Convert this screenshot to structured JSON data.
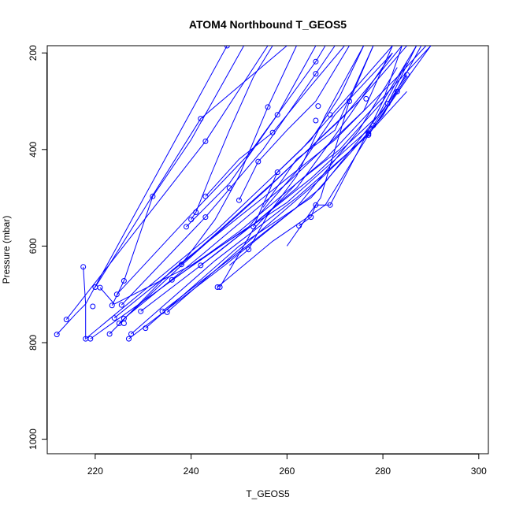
{
  "chart_data": {
    "type": "line",
    "title": "ATOM4 Northbound T_GEOS5",
    "xlabel": "T_GEOS5",
    "ylabel": "Pressure (mbar)",
    "xlim": [
      210,
      302
    ],
    "ylim": [
      1030,
      185
    ],
    "y_reversed": true,
    "x_ticks": [
      220,
      240,
      260,
      280,
      300
    ],
    "y_ticks": [
      200,
      400,
      600,
      800,
      1000
    ],
    "grid": false,
    "line_color": "#0000FF",
    "series": [
      {
        "points": [
          [
            212,
            783
          ],
          [
            216,
            740
          ],
          [
            218,
            720
          ],
          [
            247.5,
            185
          ]
        ]
      },
      {
        "points": [
          [
            214,
            752
          ],
          [
            243,
            383
          ],
          [
            256,
            185
          ]
        ]
      },
      {
        "points": [
          [
            217.5,
            643
          ],
          [
            218,
            720
          ],
          [
            218,
            792
          ],
          [
            245,
            570
          ],
          [
            263,
            400
          ],
          [
            282,
            185
          ]
        ]
      },
      {
        "points": [
          [
            219,
            792
          ],
          [
            232,
            700
          ],
          [
            250,
            570
          ],
          [
            268,
            420
          ],
          [
            284,
            250
          ],
          [
            290,
            185
          ]
        ]
      },
      {
        "points": [
          [
            220,
            685
          ],
          [
            242,
            336
          ],
          [
            260,
            185
          ]
        ]
      },
      {
        "points": [
          [
            221,
            686
          ],
          [
            224,
            720
          ],
          [
            240,
            640
          ],
          [
            260,
            510
          ],
          [
            278,
            350
          ],
          [
            285,
            245
          ]
        ]
      },
      {
        "points": [
          [
            223,
            782
          ],
          [
            236,
            650
          ],
          [
            255,
            500
          ],
          [
            270,
            380
          ],
          [
            283,
            250
          ],
          [
            289,
            185
          ]
        ]
      },
      {
        "points": [
          [
            223.5,
            723
          ],
          [
            226,
            672
          ],
          [
            232,
            497
          ],
          [
            240,
            380
          ],
          [
            251,
            185
          ]
        ]
      },
      {
        "points": [
          [
            224,
            749
          ],
          [
            240,
            620
          ],
          [
            258,
            460
          ],
          [
            272,
            330
          ],
          [
            284,
            185
          ]
        ]
      },
      {
        "points": [
          [
            224.5,
            700
          ],
          [
            239,
            545
          ],
          [
            252,
            410
          ],
          [
            266,
            218
          ],
          [
            268,
            185
          ]
        ]
      },
      {
        "points": [
          [
            225,
            760
          ],
          [
            238,
            640
          ],
          [
            256,
            480
          ],
          [
            275,
            300
          ],
          [
            285,
            185
          ]
        ]
      },
      {
        "points": [
          [
            225.5,
            722
          ],
          [
            243,
            540
          ],
          [
            255,
            400
          ],
          [
            266,
            243
          ],
          [
            270,
            185
          ]
        ]
      },
      {
        "points": [
          [
            226,
            750
          ],
          [
            242,
            620
          ],
          [
            260,
            470
          ],
          [
            276,
            320
          ],
          [
            282,
            185
          ]
        ]
      },
      {
        "points": [
          [
            227,
            792
          ],
          [
            247,
            640
          ],
          [
            267,
            480
          ],
          [
            281,
            305
          ],
          [
            287,
            185
          ]
        ]
      },
      {
        "points": [
          [
            227.5,
            782
          ],
          [
            245,
            630
          ],
          [
            262,
            500
          ],
          [
            277,
            370
          ],
          [
            286,
            240
          ],
          [
            290,
            185
          ]
        ]
      },
      {
        "points": [
          [
            229.5,
            735
          ],
          [
            246,
            610
          ],
          [
            265,
            460
          ],
          [
            279,
            330
          ],
          [
            285,
            220
          ]
        ]
      },
      {
        "points": [
          [
            230.5,
            770
          ],
          [
            250,
            600
          ],
          [
            265,
            500
          ],
          [
            280,
            330
          ],
          [
            288,
            185
          ]
        ]
      },
      {
        "points": [
          [
            234,
            735
          ],
          [
            249,
            620
          ],
          [
            262,
            520
          ],
          [
            275,
            360
          ],
          [
            283,
            230
          ]
        ]
      },
      {
        "points": [
          [
            235,
            737
          ],
          [
            252,
            590
          ],
          [
            266,
            470
          ],
          [
            277,
            367
          ],
          [
            285,
            280
          ]
        ]
      },
      {
        "points": [
          [
            236,
            670
          ],
          [
            252,
            560
          ],
          [
            262,
            445
          ],
          [
            270,
            328
          ],
          [
            282,
            200
          ]
        ]
      },
      {
        "points": [
          [
            238,
            638
          ],
          [
            245,
            545
          ],
          [
            250,
            455
          ],
          [
            256,
            312
          ],
          [
            262,
            185
          ]
        ]
      },
      {
        "points": [
          [
            239,
            560
          ],
          [
            248,
            470
          ],
          [
            258,
            328
          ],
          [
            266,
            185
          ]
        ]
      },
      {
        "points": [
          [
            240,
            545
          ],
          [
            241,
            530
          ],
          [
            244,
            455
          ],
          [
            248,
            360
          ],
          [
            253,
            250
          ],
          [
            257,
            185
          ]
        ]
      },
      {
        "points": [
          [
            242,
            640
          ],
          [
            253,
            555
          ],
          [
            262,
            480
          ],
          [
            273,
            330
          ],
          [
            282,
            200
          ]
        ]
      },
      {
        "points": [
          [
            243,
            497
          ],
          [
            250,
            420
          ],
          [
            257,
            365
          ],
          [
            264,
            280
          ],
          [
            272,
            185
          ]
        ]
      },
      {
        "points": [
          [
            245.5,
            685
          ],
          [
            257,
            590
          ],
          [
            268,
            515
          ],
          [
            277,
            370
          ],
          [
            285,
            250
          ]
        ]
      },
      {
        "points": [
          [
            246,
            685
          ],
          [
            253,
            565
          ],
          [
            262,
            470
          ],
          [
            271,
            400
          ],
          [
            280,
            300
          ],
          [
            287,
            185
          ]
        ]
      },
      {
        "points": [
          [
            248,
            640
          ],
          [
            252,
            607
          ],
          [
            256,
            535
          ],
          [
            262,
            455
          ],
          [
            268,
            330
          ],
          [
            276,
            185
          ]
        ]
      },
      {
        "points": [
          [
            250,
            505
          ],
          [
            254,
            425
          ],
          [
            260,
            360
          ],
          [
            266,
            300
          ],
          [
            273,
            185
          ]
        ]
      },
      {
        "points": [
          [
            253,
            560
          ],
          [
            258,
            447
          ],
          [
            265,
            380
          ],
          [
            271,
            290
          ],
          [
            276,
            185
          ]
        ]
      },
      {
        "points": [
          [
            255,
            520
          ],
          [
            262,
            420
          ],
          [
            270,
            360
          ],
          [
            278,
            185
          ]
        ]
      },
      {
        "points": [
          [
            262.5,
            558
          ],
          [
            265,
            540
          ],
          [
            266,
            515
          ],
          [
            269,
            515
          ],
          [
            275,
            400
          ],
          [
            280,
            300
          ],
          [
            284,
            185
          ]
        ]
      },
      {
        "points": [
          [
            260,
            600
          ],
          [
            267,
            500
          ],
          [
            273,
            300
          ],
          [
            278,
            185
          ]
        ]
      }
    ],
    "markers": [
      [
        212,
        783
      ],
      [
        214,
        752
      ],
      [
        217.5,
        643
      ],
      [
        218,
        792
      ],
      [
        219,
        792
      ],
      [
        219.5,
        725
      ],
      [
        220,
        685
      ],
      [
        221,
        686
      ],
      [
        223,
        782
      ],
      [
        223.5,
        723
      ],
      [
        224,
        749
      ],
      [
        224.5,
        700
      ],
      [
        225,
        760
      ],
      [
        225.5,
        722
      ],
      [
        226,
        750
      ],
      [
        226,
        760
      ],
      [
        226,
        672
      ],
      [
        227,
        792
      ],
      [
        227.5,
        782
      ],
      [
        229.5,
        735
      ],
      [
        230.5,
        770
      ],
      [
        232,
        497
      ],
      [
        234,
        735
      ],
      [
        235,
        737
      ],
      [
        236,
        670
      ],
      [
        238,
        638
      ],
      [
        239,
        560
      ],
      [
        240,
        545
      ],
      [
        241,
        530
      ],
      [
        242,
        640
      ],
      [
        243,
        497
      ],
      [
        243,
        540
      ],
      [
        245.5,
        685
      ],
      [
        246,
        685
      ],
      [
        242,
        336
      ],
      [
        243,
        383
      ],
      [
        247.5,
        185
      ],
      [
        248,
        480
      ],
      [
        250,
        505
      ],
      [
        252,
        607
      ],
      [
        253,
        560
      ],
      [
        254,
        425
      ],
      [
        256,
        312
      ],
      [
        257,
        365
      ],
      [
        258,
        328
      ],
      [
        258,
        447
      ],
      [
        262.5,
        558
      ],
      [
        265,
        540
      ],
      [
        266,
        515
      ],
      [
        269,
        515
      ],
      [
        266,
        218
      ],
      [
        266,
        243
      ],
      [
        266.5,
        310
      ],
      [
        269,
        328
      ],
      [
        266,
        340
      ],
      [
        273,
        300
      ],
      [
        276.5,
        295
      ],
      [
        277,
        367
      ],
      [
        277,
        370
      ],
      [
        278,
        350
      ],
      [
        281,
        305
      ],
      [
        283,
        280
      ],
      [
        285,
        245
      ]
    ]
  }
}
